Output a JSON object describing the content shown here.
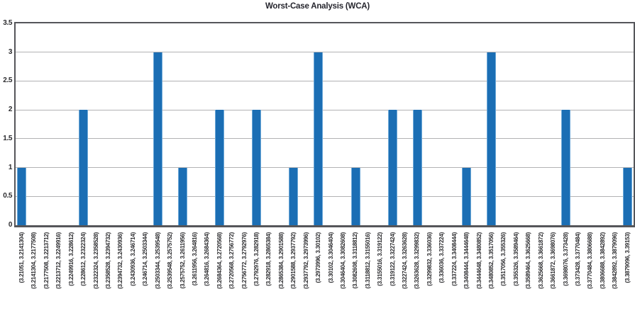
{
  "chart_data": {
    "type": "bar",
    "title": "Worst-Case Analysis (WCA)",
    "xlabel": "",
    "ylabel": "",
    "ylim": [
      0,
      3.5
    ],
    "ytick_labels": [
      "0",
      "0.5",
      "1",
      "1.5",
      "2",
      "2.5",
      "3",
      "3.5"
    ],
    "ytick_values": [
      0,
      0.5,
      1,
      1.5,
      2,
      2.5,
      3,
      3.5
    ],
    "grid": true,
    "legend": "none",
    "x_label_rotation_degrees": 90,
    "categories": [
      "(3.21051, 3.2141304)",
      "(3.2141304, 3.2177508)",
      "(3.2177508, 3.2213712)",
      "(3.2213712, 3.2249916)",
      "(3.2249916, 3.228612)",
      "(3.228612, 3.2322324)",
      "(3.2322324, 3.2358528)",
      "(3.2358528, 3.2394732)",
      "(3.2394732, 3.2430936)",
      "(3.2430936, 3.246714)",
      "(3.246714, 3.2503344)",
      "(3.2503344, 3.2539548)",
      "(3.2539548, 3.2575752)",
      "(3.2575752, 3.2611956)",
      "(3.2611956, 3.264816)",
      "(3.264816, 3.2684364)",
      "(3.2684364, 3.2720568)",
      "(3.2720568, 3.2756772)",
      "(3.2756772, 3.2792976)",
      "(3.2792976, 3.282918)",
      "(3.282918, 3.2865384)",
      "(3.2865384, 3.2901588)",
      "(3.2901588, 3.2937792)",
      "(3.2937792, 3.2973996)",
      "(3.2973996, 3.30102)",
      "(3.30102, 3.3046404)",
      "(3.3046404, 3.3082608)",
      "(3.3082608, 3.3118812)",
      "(3.3118812, 3.3155016)",
      "(3.3155016, 3.319122)",
      "(3.319122, 3.3227424)",
      "(3.3227424, 3.3263628)",
      "(3.3263628, 3.3299832)",
      "(3.3299832, 3.336036)",
      "(3.336036, 3.337224)",
      "(3.337224, 3.3408444)",
      "(3.3408444, 3.3444648)",
      "(3.3444648, 3.3480852)",
      "(3.3480852, 3.3517056)",
      "(3.3517056, 3.355326)",
      "(3.355326, 3.3589464)",
      "(3.3589464, 3.3625668)",
      "(3.3625668, 3.3661872)",
      "(3.3661872, 3.3698076)",
      "(3.3698076, 3.373428)",
      "(3.373428, 3.3770484)",
      "(3.3770484, 3.3806688)",
      "(3.3806688, 3.3842892)",
      "(3.3842892, 3.3879096)",
      "(3.3879096, 3.39153)"
    ],
    "values": [
      1,
      0,
      0,
      0,
      0,
      2,
      0,
      0,
      0,
      0,
      0,
      3,
      0,
      1,
      0,
      0,
      2,
      0,
      0,
      2,
      0,
      0,
      1,
      0,
      3,
      0,
      0,
      1,
      0,
      0,
      2,
      0,
      2,
      0,
      0,
      0,
      1,
      0,
      3,
      0,
      0,
      0,
      0,
      0,
      2,
      0,
      0,
      0,
      0,
      1
    ],
    "colors": {
      "bar_fill": "#1b6eb4",
      "bar_edge": "#6ea9d8",
      "gridline": "#b2b2b4",
      "axis_frame": "#55565a",
      "title_text": "#26262e",
      "tick_text": "#2b2b2e",
      "background": "#ffffff"
    }
  }
}
